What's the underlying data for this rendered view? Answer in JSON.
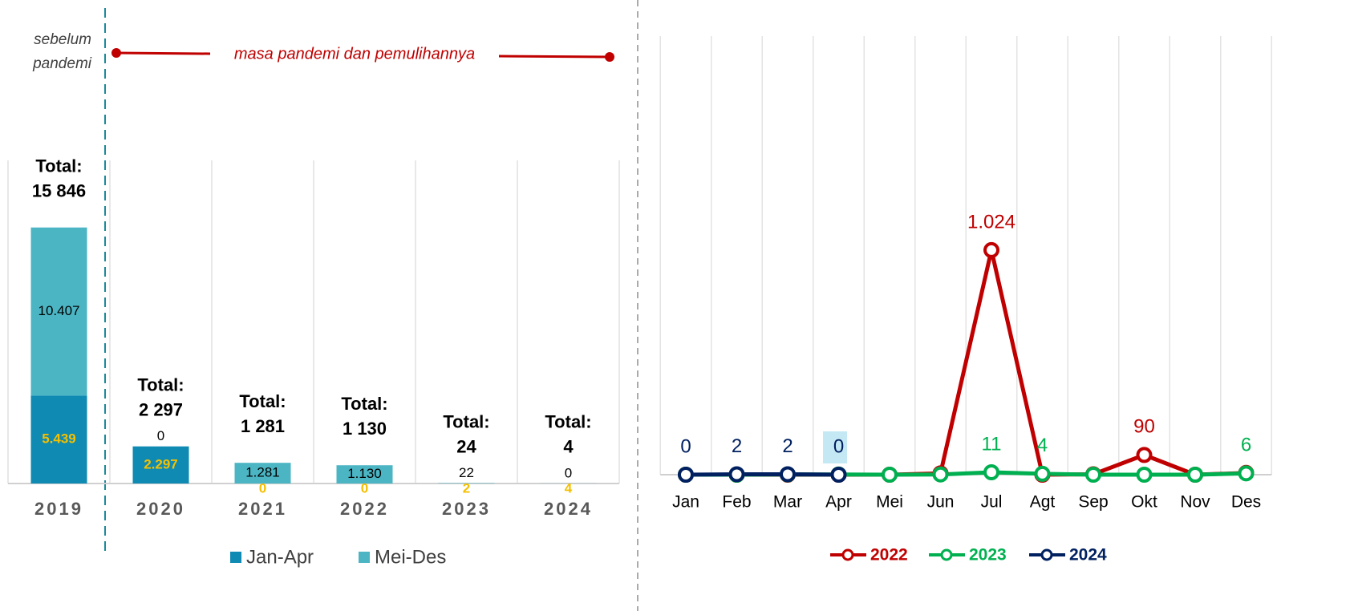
{
  "chart_data": [
    {
      "type": "bar",
      "stacked": true,
      "before_label": [
        "sebelum",
        "pandemi"
      ],
      "period_label": "masa pandemi dan pemulihannya",
      "categories": [
        "2019",
        "2020",
        "2021",
        "2022",
        "2023",
        "2024"
      ],
      "ylim": [
        0,
        20000
      ],
      "series": [
        {
          "name": "Jan-Apr",
          "color": "#0e8ab3",
          "label_color": "#f5c000",
          "values": [
            5439,
            2297,
            0,
            0,
            2,
            4
          ],
          "value_labels": [
            "5.439",
            "2.297",
            "0",
            "0",
            "2",
            "4"
          ]
        },
        {
          "name": "Mei-Des",
          "color": "#4bb5c4",
          "label_color": "#000000",
          "values": [
            10407,
            0,
            1281,
            1130,
            22,
            0
          ],
          "value_labels": [
            "10.407",
            "0",
            "1.281",
            "1.130",
            "22",
            "0"
          ]
        }
      ],
      "total_labels": [
        [
          "Total:",
          "15 846"
        ],
        [
          "Total:",
          "2 297"
        ],
        [
          "Total:",
          "1 281"
        ],
        [
          "Total:",
          "1 130"
        ],
        [
          "Total:",
          "24"
        ],
        [
          "Total:",
          "4"
        ]
      ]
    },
    {
      "type": "line",
      "categories": [
        "Jan",
        "Feb",
        "Mar",
        "Apr",
        "Mei",
        "Jun",
        "Jul",
        "Agt",
        "Sep",
        "Okt",
        "Nov",
        "Des"
      ],
      "ylim": [
        0,
        2000
      ],
      "series": [
        {
          "name": "2022",
          "color": "#c00000",
          "values": [
            0,
            0,
            0,
            0,
            0,
            6,
            1024,
            0,
            2,
            90,
            0,
            8
          ],
          "value_labels": [
            null,
            null,
            null,
            null,
            null,
            null,
            "1.024",
            null,
            null,
            "90",
            null,
            null
          ]
        },
        {
          "name": "2023",
          "color": "#00b050",
          "values": [
            0,
            0,
            1,
            1,
            0,
            1,
            11,
            4,
            0,
            0,
            0,
            6
          ],
          "value_labels": [
            null,
            null,
            null,
            null,
            null,
            null,
            "11",
            "4",
            null,
            null,
            null,
            "6"
          ]
        },
        {
          "name": "2024",
          "color": "#002060",
          "values": [
            0,
            2,
            2,
            0,
            null,
            null,
            null,
            null,
            null,
            null,
            null,
            null
          ],
          "value_labels": [
            "0",
            "2",
            "2",
            "0",
            null,
            null,
            null,
            null,
            null,
            null,
            null,
            null
          ]
        }
      ]
    }
  ]
}
